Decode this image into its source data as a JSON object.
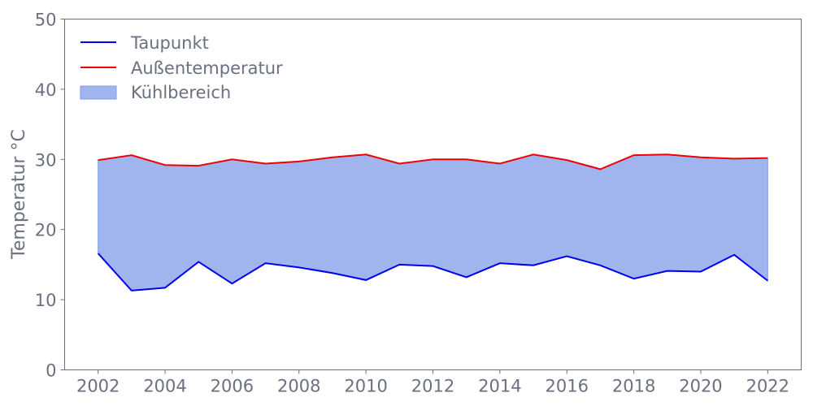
{
  "chart_data": {
    "type": "line",
    "title": "",
    "xlabel": "",
    "ylabel": "Temperatur °C",
    "xlim": [
      2001,
      2023
    ],
    "ylim": [
      0,
      50
    ],
    "xticks": [
      2002,
      2004,
      2006,
      2008,
      2010,
      2012,
      2014,
      2016,
      2018,
      2020,
      2022
    ],
    "yticks": [
      0,
      10,
      20,
      30,
      40,
      50
    ],
    "grid": false,
    "legend_position": "top-left",
    "x": [
      2002,
      2003,
      2004,
      2005,
      2006,
      2007,
      2008,
      2009,
      2010,
      2011,
      2012,
      2013,
      2014,
      2015,
      2016,
      2017,
      2018,
      2019,
      2020,
      2021,
      2022
    ],
    "series": [
      {
        "name": "Taupunkt",
        "color": "#0000ee",
        "values": [
          16.6,
          11.3,
          11.7,
          15.4,
          12.3,
          15.2,
          14.6,
          13.8,
          12.8,
          15.0,
          14.8,
          13.2,
          15.2,
          14.9,
          16.2,
          14.9,
          13.0,
          14.1,
          14.0,
          16.4,
          12.7
        ]
      },
      {
        "name": "Außentemperatur",
        "color": "#ee0000",
        "values": [
          29.9,
          30.6,
          29.2,
          29.1,
          30.0,
          29.4,
          29.7,
          30.3,
          30.7,
          29.4,
          30.0,
          30.0,
          29.4,
          30.7,
          29.9,
          28.6,
          30.6,
          30.7,
          30.3,
          30.1,
          30.2
        ]
      }
    ],
    "fill": {
      "name": "Kühlbereich",
      "between": [
        "Taupunkt",
        "Außentemperatur"
      ],
      "color": "#a0b4ee",
      "edge": "#7f9aef"
    }
  }
}
